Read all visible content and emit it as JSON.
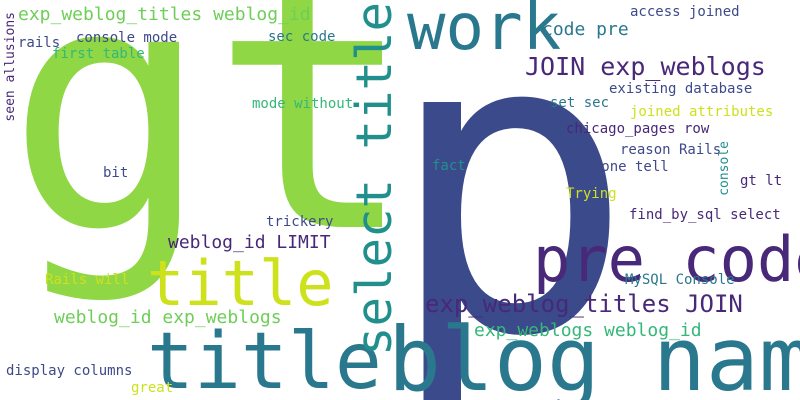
{
  "colors": {
    "background": "#ffffff",
    "navy": "#3b4a8a",
    "indigo": "#482878",
    "teal": "#21908d",
    "teal_dark": "#2a788e",
    "green": "#35b779",
    "light_green": "#6ece58",
    "lime": "#8fd744",
    "yellow_green": "#b5de2b",
    "yellow": "#cde11d",
    "blue_slate": "#3e4a89",
    "purple": "#440154"
  },
  "words": [
    {
      "text": "p",
      "color": "navy"
    },
    {
      "text": "gt",
      "color": "lime"
    },
    {
      "text": "blog_name",
      "color": "teal_dark"
    },
    {
      "text": "title",
      "color": "teal_dark"
    },
    {
      "text": "select title",
      "color": "teal"
    },
    {
      "text": "work",
      "color": "teal_dark"
    },
    {
      "text": "pre code",
      "color": "indigo"
    },
    {
      "text": "title",
      "color": "yellow"
    },
    {
      "text": "exp_weblog_titles JOIN",
      "color": "indigo"
    },
    {
      "text": "JOIN exp_weblogs",
      "color": "indigo"
    },
    {
      "text": "exp_weblog_titles weblog_id",
      "color": "light_green"
    },
    {
      "text": "weblog_id exp_weblogs",
      "color": "light_green"
    },
    {
      "text": "exp_weblogs weblog_id",
      "color": "green"
    },
    {
      "text": "weblog_id LIMIT",
      "color": "indigo"
    },
    {
      "text": "code pre",
      "color": "teal_dark"
    },
    {
      "text": "access joined",
      "color": "blue_slate"
    },
    {
      "text": "existing database",
      "color": "blue_slate"
    },
    {
      "text": "set sec",
      "color": "teal_dark"
    },
    {
      "text": "joined attributes",
      "color": "yellow"
    },
    {
      "text": "chicago_pages row",
      "color": "indigo"
    },
    {
      "text": "reason Rails",
      "color": "blue_slate"
    },
    {
      "text": "anyone tell",
      "color": "blue_slate"
    },
    {
      "text": "gt lt",
      "color": "indigo"
    },
    {
      "text": "Trying",
      "color": "yellow"
    },
    {
      "text": "find_by_sql select",
      "color": "indigo"
    },
    {
      "text": "MySQL Console",
      "color": "teal_dark"
    },
    {
      "text": "fact",
      "color": "teal"
    },
    {
      "text": "trickery",
      "color": "blue_slate"
    },
    {
      "text": "mode without",
      "color": "green"
    },
    {
      "text": "sec code",
      "color": "teal_dark"
    },
    {
      "text": "console mode",
      "color": "blue_slate"
    },
    {
      "text": "first table",
      "color": "green"
    },
    {
      "text": "rails",
      "color": "blue_slate"
    },
    {
      "text": "seen allusions",
      "color": "indigo"
    },
    {
      "text": "bit",
      "color": "blue_slate"
    },
    {
      "text": "Rails will",
      "color": "yellow"
    },
    {
      "text": "display columns",
      "color": "blue_slate"
    },
    {
      "text": "great",
      "color": "yellow"
    },
    {
      "text": "console",
      "color": "teal"
    }
  ]
}
